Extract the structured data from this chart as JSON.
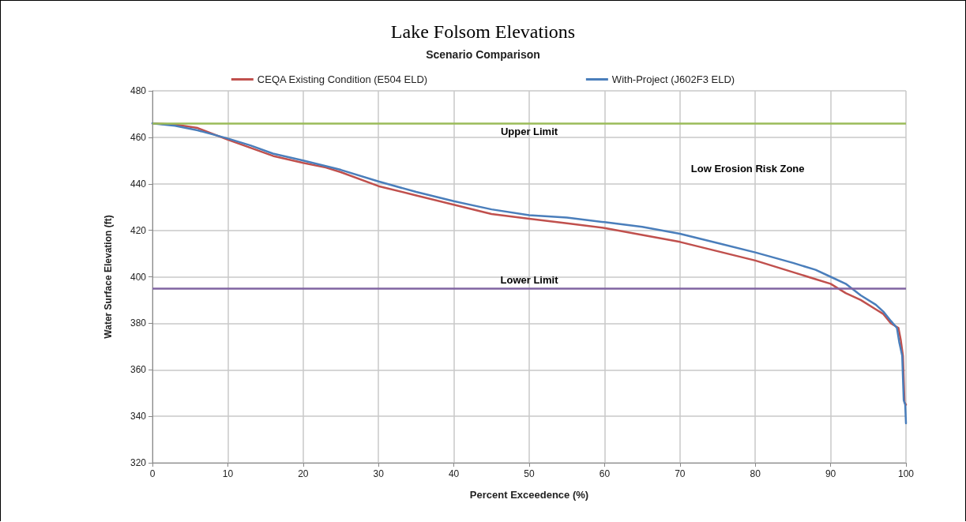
{
  "chart_data": {
    "type": "line",
    "title": "Lake Folsom Elevations",
    "subtitle": "Scenario Comparison",
    "xlabel": "Percent Exceedence (%)",
    "ylabel": "Water Surface Elevation (ft)",
    "series": [
      {
        "name": "CEQA Existing Condition (E504 ELD)",
        "color": "#c0504d",
        "x": [
          0,
          3,
          6,
          10,
          13,
          16,
          20,
          23,
          25,
          30,
          35,
          40,
          45,
          50,
          55,
          60,
          65,
          70,
          75,
          80,
          85,
          88,
          90,
          92,
          94,
          96,
          97,
          98,
          99,
          99.3,
          99.6,
          99.8,
          100
        ],
        "values": [
          466,
          465.5,
          464,
          459,
          455.5,
          452,
          449,
          447,
          445,
          439,
          435,
          431,
          427,
          425,
          423,
          421,
          418,
          415,
          411,
          407,
          402,
          399,
          397,
          393,
          390,
          386,
          384,
          380,
          378,
          373,
          366,
          346,
          345
        ]
      },
      {
        "name": "With-Project (J602F3 ELD)",
        "color": "#4a7ebb",
        "x": [
          0,
          3,
          6,
          10,
          13,
          16,
          20,
          25,
          30,
          35,
          40,
          45,
          50,
          55,
          60,
          65,
          70,
          75,
          80,
          85,
          88,
          90,
          92,
          94,
          96,
          97,
          98,
          98.8,
          99.1,
          99.5,
          99.7,
          99.9,
          100
        ],
        "values": [
          466,
          465,
          463,
          459.5,
          456.5,
          453,
          450,
          446,
          441,
          436.5,
          432.5,
          429,
          426.5,
          425.5,
          423.5,
          421.5,
          418.5,
          414.5,
          410.5,
          406,
          403,
          400,
          397,
          392,
          388,
          385,
          381,
          378,
          372,
          366,
          347,
          345,
          337
        ]
      }
    ],
    "xlim": [
      0,
      100
    ],
    "xticks": [
      0,
      10,
      20,
      30,
      40,
      50,
      60,
      70,
      80,
      90,
      100
    ],
    "ylim": [
      320,
      480
    ],
    "yticks": [
      320,
      340,
      360,
      380,
      400,
      420,
      440,
      460,
      480
    ],
    "ref_lines": [
      {
        "axis": "y",
        "value": 466,
        "label": "Upper Limit",
        "color": "#9bbb59"
      },
      {
        "axis": "y",
        "value": 395,
        "label": "Lower Limit",
        "color": "#8064a2"
      }
    ],
    "annotations": [
      "Low Erosion Risk Zone"
    ],
    "grid": true,
    "legend": "top",
    "marker": "none",
    "line_style": "solid"
  }
}
